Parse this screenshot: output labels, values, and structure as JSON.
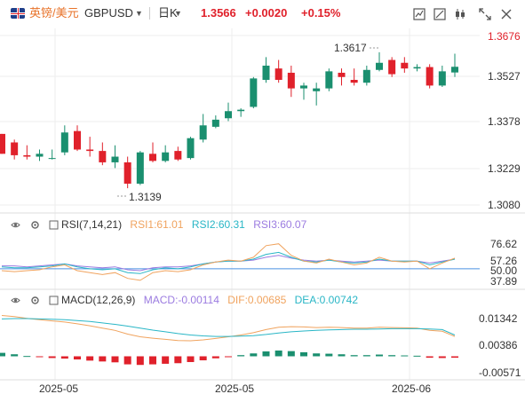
{
  "header": {
    "symbol_name": "英镑/美元",
    "symbol_code": "GBPUSD",
    "period": "日K",
    "price": "1.3566",
    "change": "+0.0020",
    "change_pct": "+0.15%"
  },
  "toolbar_icons": [
    "indicator-icon",
    "draw-icon",
    "candle-type-icon",
    "fullscreen-icon",
    "close-icon"
  ],
  "colors": {
    "up": "#1a8f6f",
    "down": "#e0212b",
    "accent": "#e8732a",
    "rsi1": "#f0a35e",
    "rsi2": "#29b6c6",
    "rsi3": "#9b7be0"
  },
  "main_chart": {
    "y_ticks": [
      "1.3676",
      "1.3527",
      "1.3378",
      "1.3229",
      "1.3080"
    ],
    "high_label": "1.3617",
    "low_label": "1.3139",
    "x_labels": [
      "2025-05",
      "2025-05",
      "2025-06"
    ]
  },
  "rsi": {
    "title": "RSI(7,14,21)",
    "rsi1": "RSI1:61.01",
    "rsi2": "RSI2:60.31",
    "rsi3": "RSI3:60.07",
    "ticks": [
      "76.62",
      "57.26",
      "50.00",
      "37.89"
    ]
  },
  "macd": {
    "title": "MACD(12,26,9)",
    "macd": "MACD:-0.00114",
    "dif": "DIF:0.00685",
    "dea": "DEA:0.00742",
    "ticks": [
      "0.01342",
      "0.00386",
      "-0.00571"
    ]
  },
  "chart_data": {
    "type": "candlestick",
    "ylim": [
      1.308,
      1.3676
    ],
    "candles": [
      [
        1.333,
        1.333,
        1.326,
        1.326
      ],
      [
        1.33,
        1.331,
        1.324,
        1.3255
      ],
      [
        1.3255,
        1.329,
        1.324,
        1.325
      ],
      [
        1.325,
        1.3275,
        1.3235,
        1.326
      ],
      [
        1.3245,
        1.3275,
        1.324,
        1.3245
      ],
      [
        1.3265,
        1.336,
        1.3255,
        1.3335
      ],
      [
        1.334,
        1.336,
        1.327,
        1.3275
      ],
      [
        1.3275,
        1.332,
        1.325,
        1.327
      ],
      [
        1.327,
        1.33,
        1.322,
        1.323
      ],
      [
        1.323,
        1.329,
        1.321,
        1.325
      ],
      [
        1.323,
        1.325,
        1.3139,
        1.3155
      ],
      [
        1.3155,
        1.327,
        1.315,
        1.3265
      ],
      [
        1.326,
        1.33,
        1.323,
        1.3235
      ],
      [
        1.3235,
        1.329,
        1.323,
        1.3265
      ],
      [
        1.327,
        1.3285,
        1.3235,
        1.324
      ],
      [
        1.3245,
        1.332,
        1.324,
        1.3315
      ],
      [
        1.331,
        1.34,
        1.33,
        1.336
      ],
      [
        1.3355,
        1.3395,
        1.335,
        1.338
      ],
      [
        1.3385,
        1.344,
        1.3375,
        1.341
      ],
      [
        1.341,
        1.342,
        1.339,
        1.3415
      ],
      [
        1.3425,
        1.353,
        1.342,
        1.3525
      ],
      [
        1.352,
        1.36,
        1.351,
        1.357
      ],
      [
        1.356,
        1.359,
        1.351,
        1.352
      ],
      [
        1.3545,
        1.357,
        1.346,
        1.349
      ],
      [
        1.349,
        1.351,
        1.345,
        1.35
      ],
      [
        1.348,
        1.351,
        1.343,
        1.349
      ],
      [
        1.349,
        1.356,
        1.348,
        1.355
      ],
      [
        1.3545,
        1.356,
        1.35,
        1.353
      ],
      [
        1.352,
        1.356,
        1.35,
        1.351
      ],
      [
        1.351,
        1.357,
        1.35,
        1.3555
      ],
      [
        1.3555,
        1.3617,
        1.355,
        1.358
      ],
      [
        1.359,
        1.36,
        1.353,
        1.354
      ],
      [
        1.358,
        1.36,
        1.3545,
        1.356
      ],
      [
        1.356,
        1.3575,
        1.355,
        1.3565
      ],
      [
        1.3565,
        1.3575,
        1.349,
        1.35
      ],
      [
        1.35,
        1.357,
        1.3495,
        1.355
      ],
      [
        1.3546,
        1.3612,
        1.353,
        1.3566
      ]
    ]
  },
  "rsi_data": {
    "rsi1": [
      48,
      47,
      48,
      49,
      52,
      54,
      48,
      46,
      44,
      46,
      40,
      38,
      46,
      48,
      47,
      49,
      54,
      57,
      59,
      58,
      62,
      74,
      76,
      64,
      58,
      56,
      60,
      57,
      54,
      56,
      62,
      58,
      57,
      58,
      50,
      56,
      61
    ],
    "rsi2": [
      52,
      51,
      51,
      52,
      53,
      55,
      52,
      50,
      49,
      50,
      46,
      45,
      49,
      51,
      50,
      52,
      55,
      57,
      58,
      58,
      60,
      65,
      67,
      62,
      58,
      57,
      59,
      57,
      56,
      57,
      60,
      58,
      58,
      58,
      54,
      57,
      60
    ],
    "rsi3": [
      53,
      53,
      52,
      53,
      54,
      55,
      53,
      52,
      51,
      52,
      49,
      48,
      51,
      52,
      52,
      53,
      55,
      57,
      58,
      58,
      59,
      62,
      64,
      61,
      59,
      58,
      59,
      58,
      57,
      58,
      59,
      58,
      58,
      58,
      56,
      58,
      60
    ]
  },
  "macd_data": {
    "dif": [
      0.0142,
      0.0138,
      0.0132,
      0.0127,
      0.0123,
      0.0119,
      0.0113,
      0.0106,
      0.0098,
      0.009,
      0.0077,
      0.0068,
      0.0063,
      0.0059,
      0.0055,
      0.0054,
      0.0057,
      0.0062,
      0.0068,
      0.0074,
      0.0082,
      0.0093,
      0.0101,
      0.0103,
      0.0102,
      0.01,
      0.0101,
      0.01,
      0.0098,
      0.0098,
      0.0101,
      0.01,
      0.0099,
      0.0098,
      0.009,
      0.0087,
      0.0069
    ],
    "dea": [
      0.013,
      0.0131,
      0.0131,
      0.013,
      0.0129,
      0.0127,
      0.0124,
      0.0121,
      0.0116,
      0.0111,
      0.0105,
      0.0098,
      0.0091,
      0.0085,
      0.0079,
      0.0074,
      0.0071,
      0.0069,
      0.0069,
      0.007,
      0.0072,
      0.0076,
      0.0081,
      0.0085,
      0.0088,
      0.009,
      0.0092,
      0.0093,
      0.0094,
      0.0094,
      0.0095,
      0.0096,
      0.0096,
      0.0096,
      0.0095,
      0.0093,
      0.0074
    ],
    "hist": [
      0.0012,
      0.0007,
      0.0001,
      -0.0003,
      -0.0006,
      -0.0008,
      -0.0011,
      -0.0015,
      -0.0018,
      -0.0021,
      -0.0028,
      -0.003,
      -0.0028,
      -0.0026,
      -0.0024,
      -0.002,
      -0.0014,
      -0.0007,
      -0.0001,
      0.0004,
      0.001,
      0.0017,
      0.002,
      0.0018,
      0.0014,
      0.001,
      0.0009,
      0.0007,
      0.0004,
      0.0004,
      0.0006,
      0.0004,
      0.0003,
      0.0002,
      -0.0005,
      -0.0006,
      -0.0005
    ]
  }
}
